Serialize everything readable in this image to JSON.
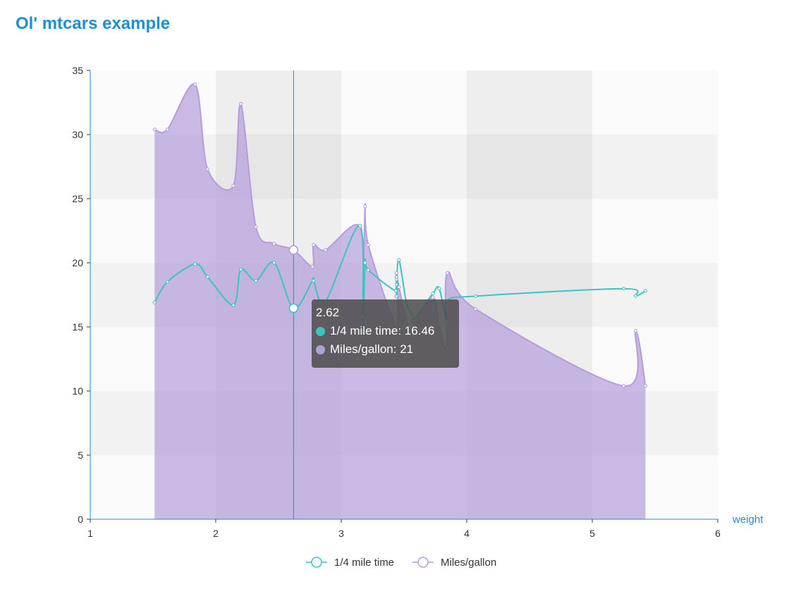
{
  "page": {
    "title": "Ol' mtcars example"
  },
  "chart_data": {
    "type": "line",
    "title": "",
    "xlabel": "weight",
    "ylabel": "",
    "xlim": [
      1,
      6
    ],
    "ylim": [
      0,
      35
    ],
    "x_ticks": [
      "1",
      "2",
      "3",
      "4",
      "5",
      "6"
    ],
    "y_ticks": [
      "0",
      "5",
      "10",
      "15",
      "20",
      "25",
      "30",
      "35"
    ],
    "grid": "alternating bands",
    "legend_position": "bottom-center",
    "colors": {
      "qsec": "#3cc4c2",
      "mpg": "#b39ddb",
      "axis": "#1e8fd0"
    },
    "series": [
      {
        "name": "1/4 mile time",
        "type": "line",
        "color": "#3cc4c2",
        "points": [
          [
            1.513,
            16.9
          ],
          [
            1.615,
            18.52
          ],
          [
            1.835,
            19.9
          ],
          [
            1.935,
            18.9
          ],
          [
            2.14,
            16.7
          ],
          [
            2.2,
            19.47
          ],
          [
            2.32,
            18.6
          ],
          [
            2.465,
            20.01
          ],
          [
            2.62,
            16.46
          ],
          [
            2.77,
            18.61
          ],
          [
            2.78,
            18.6
          ],
          [
            2.875,
            17.02
          ],
          [
            3.15,
            22.9
          ],
          [
            3.17,
            14.5
          ],
          [
            3.19,
            20.0
          ],
          [
            3.215,
            19.44
          ],
          [
            3.435,
            17.82
          ],
          [
            3.44,
            18.9
          ],
          [
            3.44,
            17.4
          ],
          [
            3.44,
            18.3
          ],
          [
            3.46,
            20.22
          ],
          [
            3.52,
            16.87
          ],
          [
            3.57,
            15.84
          ],
          [
            3.57,
            15.41
          ],
          [
            3.73,
            17.6
          ],
          [
            3.78,
            18.0
          ],
          [
            3.84,
            15.41
          ],
          [
            3.845,
            17.05
          ],
          [
            4.07,
            17.4
          ],
          [
            5.25,
            17.98
          ],
          [
            5.345,
            17.42
          ],
          [
            5.424,
            17.82
          ]
        ]
      },
      {
        "name": "Miles/gallon",
        "type": "area",
        "color": "#b39ddb",
        "points": [
          [
            1.513,
            30.4
          ],
          [
            1.615,
            30.4
          ],
          [
            1.835,
            33.9
          ],
          [
            1.935,
            27.3
          ],
          [
            2.14,
            26.0
          ],
          [
            2.2,
            32.4
          ],
          [
            2.32,
            22.8
          ],
          [
            2.465,
            21.5
          ],
          [
            2.62,
            21.0
          ],
          [
            2.77,
            19.7
          ],
          [
            2.78,
            21.4
          ],
          [
            2.875,
            21.0
          ],
          [
            3.15,
            22.8
          ],
          [
            3.17,
            15.8
          ],
          [
            3.19,
            24.4
          ],
          [
            3.215,
            21.4
          ],
          [
            3.435,
            15.2
          ],
          [
            3.44,
            18.7
          ],
          [
            3.44,
            17.8
          ],
          [
            3.44,
            19.2
          ],
          [
            3.46,
            18.1
          ],
          [
            3.52,
            15.5
          ],
          [
            3.57,
            14.3
          ],
          [
            3.57,
            15.0
          ],
          [
            3.73,
            17.3
          ],
          [
            3.78,
            15.2
          ],
          [
            3.84,
            13.3
          ],
          [
            3.845,
            19.2
          ],
          [
            4.07,
            16.4
          ],
          [
            5.25,
            10.4
          ],
          [
            5.345,
            14.7
          ],
          [
            5.424,
            10.4
          ]
        ]
      }
    ],
    "highlight_x": 2.62
  },
  "tooltip": {
    "header": "2.62",
    "rows": [
      {
        "label": "1/4 mile time: 16.46",
        "color": "#3cc4c2"
      },
      {
        "label": "Miles/gallon: 21",
        "color": "#b39ddb"
      }
    ]
  },
  "legend": {
    "items": [
      {
        "label": "1/4 mile time",
        "color": "#3cc4c2"
      },
      {
        "label": "Miles/gallon",
        "color": "#b39ddb"
      }
    ]
  }
}
